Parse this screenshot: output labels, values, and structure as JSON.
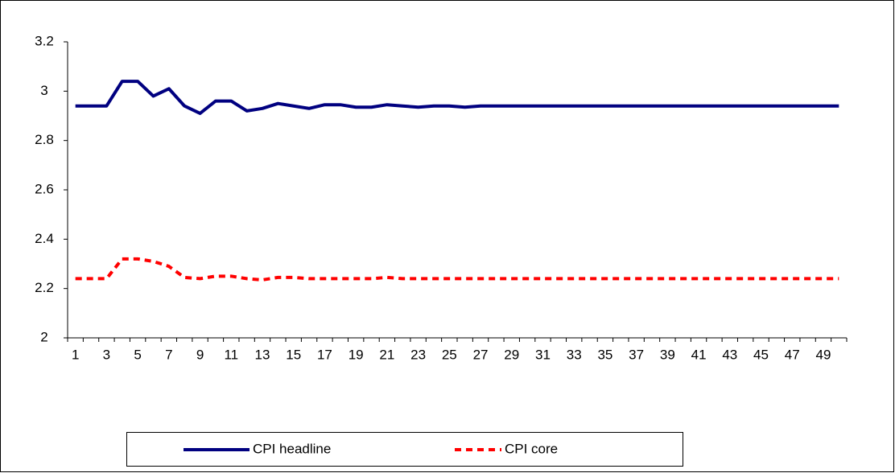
{
  "chart_data": {
    "type": "line",
    "categories": [
      1,
      null,
      3,
      null,
      5,
      null,
      7,
      null,
      9,
      null,
      11,
      null,
      13,
      null,
      15,
      null,
      17,
      null,
      19,
      null,
      21,
      null,
      23,
      null,
      25,
      null,
      27,
      null,
      29,
      null,
      31,
      null,
      33,
      null,
      35,
      null,
      37,
      null,
      39,
      null,
      41,
      null,
      43,
      null,
      45,
      null,
      47,
      null,
      49,
      null
    ],
    "series": [
      {
        "name": "CPI headline",
        "color": "#000080",
        "dash": false,
        "values": [
          2.94,
          2.94,
          2.94,
          3.04,
          3.04,
          2.98,
          3.01,
          2.94,
          2.91,
          2.96,
          2.96,
          2.92,
          2.93,
          2.95,
          2.94,
          2.93,
          2.945,
          2.945,
          2.935,
          2.935,
          2.945,
          2.94,
          2.935,
          2.94,
          2.94,
          2.935,
          2.94,
          2.94,
          2.94,
          2.94,
          2.94,
          2.94,
          2.94,
          2.94,
          2.94,
          2.94,
          2.94,
          2.94,
          2.94,
          2.94,
          2.94,
          2.94,
          2.94,
          2.94,
          2.94,
          2.94,
          2.94,
          2.94,
          2.94,
          2.94
        ]
      },
      {
        "name": "CPI core",
        "color": "#ff0000",
        "dash": true,
        "values": [
          2.24,
          2.24,
          2.24,
          2.32,
          2.32,
          2.31,
          2.29,
          2.245,
          2.24,
          2.25,
          2.25,
          2.24,
          2.235,
          2.245,
          2.245,
          2.24,
          2.24,
          2.24,
          2.24,
          2.24,
          2.245,
          2.24,
          2.24,
          2.24,
          2.24,
          2.24,
          2.24,
          2.24,
          2.24,
          2.24,
          2.24,
          2.24,
          2.24,
          2.24,
          2.24,
          2.24,
          2.24,
          2.24,
          2.24,
          2.24,
          2.24,
          2.24,
          2.24,
          2.24,
          2.24,
          2.24,
          2.24,
          2.24,
          2.24,
          2.24
        ]
      }
    ],
    "ylim": [
      2,
      3.2
    ],
    "yticks": [
      2,
      2.2,
      2.4,
      2.6,
      2.8,
      3,
      3.2
    ],
    "grid": false,
    "legend": "bottom"
  }
}
